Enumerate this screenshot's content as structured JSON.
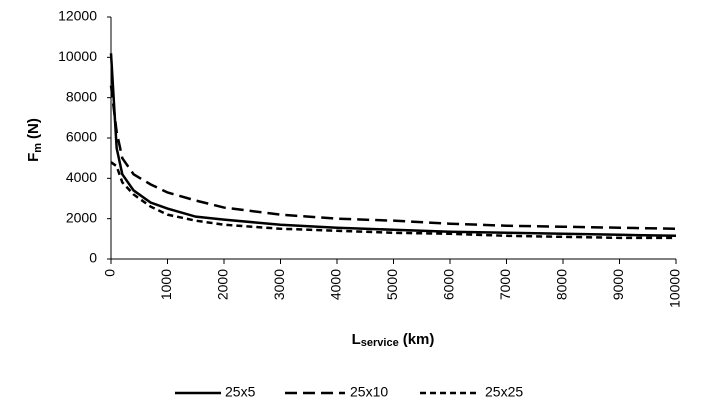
{
  "chart_data": {
    "type": "line",
    "x_label": {
      "symbol": "L",
      "subscript": "service",
      "unit": "(km)"
    },
    "y_label": {
      "symbol": "F",
      "subscript": "m",
      "unit": "(N)"
    },
    "x": [
      0,
      100,
      200,
      400,
      700,
      1000,
      1500,
      2000,
      3000,
      4000,
      5000,
      6000,
      7000,
      8000,
      9000,
      10000
    ],
    "series": [
      {
        "name": "25x5",
        "color": "#000000",
        "line_style": "solid",
        "values": [
          10200,
          5500,
          4200,
          3400,
          2800,
          2500,
          2100,
          1950,
          1700,
          1550,
          1450,
          1350,
          1300,
          1250,
          1200,
          1150
        ]
      },
      {
        "name": "25x10",
        "color": "#000000",
        "line_style": "dashed",
        "values": [
          8600,
          6300,
          5000,
          4200,
          3700,
          3300,
          2900,
          2550,
          2200,
          2000,
          1900,
          1750,
          1650,
          1600,
          1550,
          1500
        ]
      },
      {
        "name": "25x25",
        "color": "#000000",
        "line_style": "dotted",
        "values": [
          4800,
          4600,
          3800,
          3200,
          2600,
          2200,
          1900,
          1700,
          1500,
          1400,
          1300,
          1250,
          1150,
          1100,
          1050,
          1050
        ]
      }
    ],
    "xlim": [
      0,
      10000
    ],
    "xticks": [
      0,
      1000,
      2000,
      3000,
      4000,
      5000,
      6000,
      7000,
      8000,
      9000,
      10000
    ],
    "ylim": [
      0,
      12000
    ],
    "yticks": [
      0,
      2000,
      4000,
      6000,
      8000,
      10000,
      12000
    ],
    "grid": false,
    "legend": "bottom"
  }
}
